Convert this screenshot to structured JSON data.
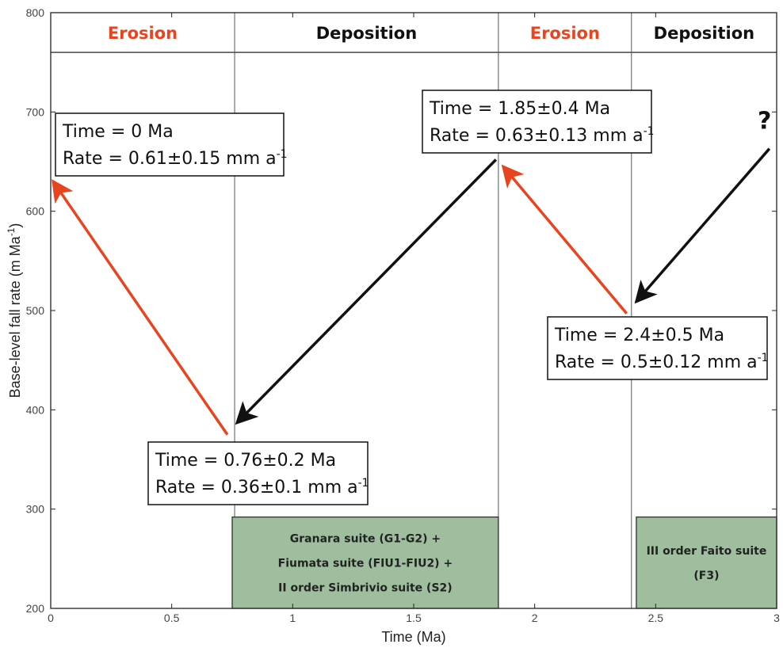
{
  "colors": {
    "erosion": "#e8441f",
    "deposition": "#111111",
    "suite_fill": "#9ebe9e",
    "red_arrow": "#e8441f",
    "black_arrow": "#111111"
  },
  "chart_data": {
    "type": "line",
    "title": "",
    "xlabel": "Time (Ma)",
    "ylabel": "Base-level fall rate (m Ma",
    "ylabel_sup": "-1",
    "ylabel_close": ")",
    "xlim": [
      0,
      3
    ],
    "ylim": [
      200,
      800
    ],
    "xticks": [
      0,
      0.5,
      1,
      1.5,
      2,
      2.5,
      3
    ],
    "xtick_labels": [
      "0",
      "0.5",
      "1",
      "1.5",
      "2",
      "2.5",
      "3"
    ],
    "yticks": [
      200,
      300,
      400,
      500,
      600,
      700,
      800
    ],
    "ytick_labels": [
      "200",
      "300",
      "400",
      "500",
      "600",
      "700",
      "800"
    ],
    "phase_band_bottom": 760,
    "phase_boundaries": [
      0.76,
      1.85,
      2.4
    ],
    "phases": [
      {
        "label": "Erosion",
        "kind": "erosion",
        "x0": 0,
        "x1": 0.76
      },
      {
        "label": "Deposition",
        "kind": "deposition",
        "x0": 0.76,
        "x1": 1.85
      },
      {
        "label": "Erosion",
        "kind": "erosion",
        "x0": 1.85,
        "x1": 2.4
      },
      {
        "label": "Deposition",
        "kind": "deposition",
        "x0": 2.4,
        "x1": 3
      }
    ],
    "points": [
      {
        "time": 0,
        "rate_m_per_Ma": 610,
        "line1": "Time = 0 Ma",
        "line2": "Rate = 0.61±0.15 mm a",
        "sup": "-1"
      },
      {
        "time": 0.76,
        "rate_m_per_Ma": 360,
        "line1": "Time = 0.76±0.2 Ma",
        "line2": "Rate = 0.36±0.1 mm a",
        "sup": "-1"
      },
      {
        "time": 1.85,
        "rate_m_per_Ma": 630,
        "line1": "Time = 1.85±0.4 Ma",
        "line2": "Rate = 0.63±0.13 mm a",
        "sup": "-1"
      },
      {
        "time": 2.4,
        "rate_m_per_Ma": 500,
        "line1": "Time = 2.4±0.5 Ma",
        "line2": "Rate = 0.5±0.12 mm a",
        "sup": "-1"
      }
    ],
    "arrows": [
      {
        "kind": "erosion",
        "from": [
          0.73,
          375
        ],
        "to": [
          0.01,
          630
        ]
      },
      {
        "kind": "deposition",
        "from": [
          1.84,
          652
        ],
        "to": [
          0.77,
          387
        ]
      },
      {
        "kind": "erosion",
        "from": [
          2.38,
          497
        ],
        "to": [
          1.87,
          645
        ]
      },
      {
        "kind": "deposition",
        "from": [
          2.97,
          663
        ],
        "to": [
          2.42,
          509
        ]
      }
    ],
    "question_mark": {
      "text": "?",
      "time": 2.95,
      "rate": 683
    },
    "suites": [
      {
        "x0": 0.75,
        "x1": 1.85,
        "y0": 200,
        "y1": 292,
        "lines": [
          "Granara suite (G1-G2) +",
          "Fiumata suite (FIU1-FIU2) +",
          "II order Simbrivio suite (S2)"
        ]
      },
      {
        "x0": 2.42,
        "x1": 3,
        "y0": 200,
        "y1": 292,
        "lines": [
          "III order Faito suite",
          "(F3)"
        ]
      }
    ]
  }
}
